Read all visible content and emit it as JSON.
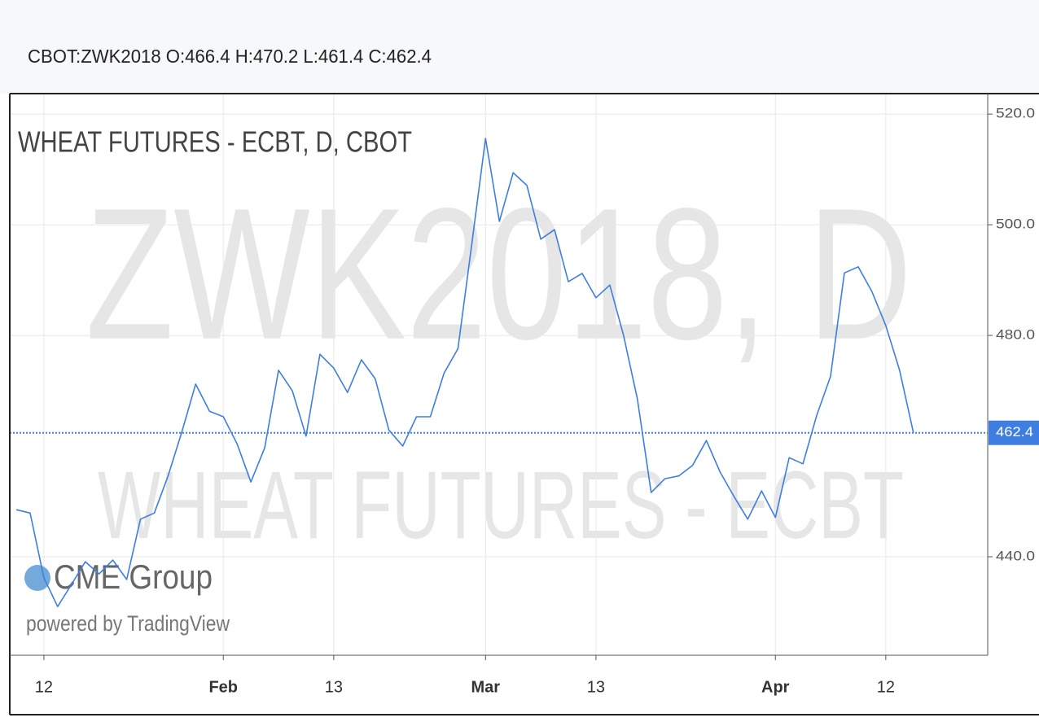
{
  "chart_data": {
    "type": "line",
    "header": "CBOT:ZWK2018 O:466.4 H:470.2 L:461.4 C:462.4",
    "title": "WHEAT FUTURES - ECBT, D, CBOT",
    "watermark": [
      "ZWK2018, D",
      "WHEAT FUTURES - ECBT"
    ],
    "logo": {
      "name": "CME Group",
      "tagline": "powered by TradingView"
    },
    "categories": [
      null,
      null,
      "12",
      null,
      null,
      null,
      null,
      null,
      null,
      null,
      null,
      null,
      null,
      null,
      null,
      "Feb",
      null,
      null,
      null,
      null,
      null,
      null,
      null,
      "13",
      null,
      null,
      null,
      null,
      null,
      null,
      null,
      null,
      null,
      null,
      "Mar",
      null,
      null,
      null,
      null,
      null,
      null,
      null,
      "13",
      null,
      null,
      null,
      null,
      null,
      null,
      null,
      null,
      null,
      null,
      null,
      null,
      "Apr",
      null,
      null,
      null,
      null,
      null,
      null,
      null,
      "12",
      null,
      null
    ],
    "values": [
      448.5,
      447.9,
      436.2,
      431.0,
      435.0,
      439.1,
      436.9,
      439.4,
      435.9,
      446.8,
      447.9,
      454.6,
      462.6,
      471.2,
      466.3,
      465.3,
      460.4,
      453.5,
      459.7,
      473.7,
      470.0,
      461.8,
      476.6,
      474.1,
      469.7,
      475.6,
      472.2,
      462.9,
      460.0,
      465.3,
      465.3,
      473.2,
      477.6,
      496.5,
      515.6,
      500.6,
      509.4,
      507.1,
      497.4,
      499.1,
      489.7,
      491.2,
      486.8,
      489.1,
      480.0,
      468.5,
      451.6,
      454.1,
      454.6,
      456.5,
      461.0,
      455.3,
      450.9,
      446.8,
      451.9,
      447.1,
      457.9,
      456.8,
      465.6,
      472.6,
      491.3,
      492.4,
      487.9,
      481.8,
      473.7,
      462.4
    ],
    "color": "#3d7ee0",
    "ylim": [
      422.2,
      523.7
    ],
    "yticks": [
      {
        "value": 440,
        "label": "440.0"
      },
      {
        "value": 480,
        "label": "480.0"
      },
      {
        "value": 500,
        "label": "500.0"
      },
      {
        "value": 520,
        "label": "520.0"
      }
    ],
    "price_line": {
      "value": 462.4,
      "label": "462.4"
    },
    "grid": true
  }
}
